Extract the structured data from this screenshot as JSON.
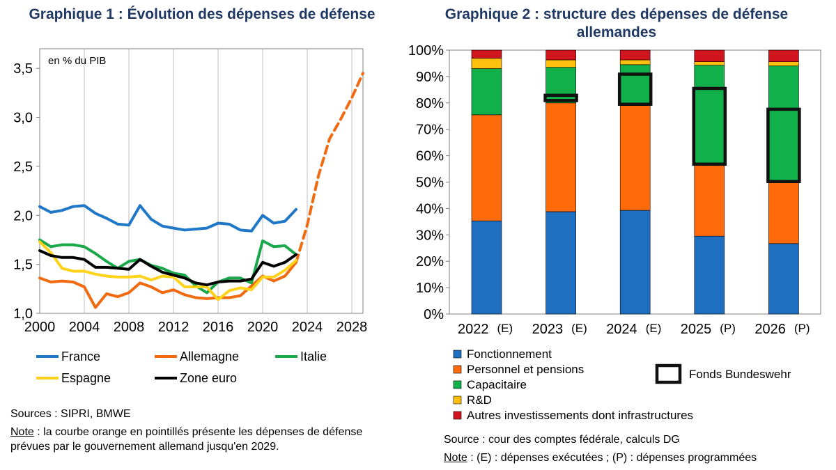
{
  "chart_data": [
    {
      "type": "line",
      "title": "Graphique 1 : Évolution des dépenses de défense",
      "unit_label": "en % du PIB",
      "xlim": [
        2000,
        2029
      ],
      "ylim": [
        1.0,
        3.7
      ],
      "x_ticks": [
        "2000",
        "2004",
        "2008",
        "2012",
        "2016",
        "2020",
        "2024",
        "2028"
      ],
      "y_ticks": [
        "1,0",
        "1,5",
        "2,0",
        "2,5",
        "3,0",
        "3,5"
      ],
      "series": [
        {
          "name": "France",
          "color": "#1f77c8",
          "style": "solid",
          "x": [
            2000,
            2001,
            2002,
            2003,
            2004,
            2005,
            2006,
            2007,
            2008,
            2009,
            2010,
            2011,
            2012,
            2013,
            2014,
            2015,
            2016,
            2017,
            2018,
            2019,
            2020,
            2021,
            2022,
            2023
          ],
          "y": [
            2.09,
            2.03,
            2.05,
            2.09,
            2.1,
            2.02,
            1.97,
            1.91,
            1.9,
            2.1,
            1.96,
            1.89,
            1.87,
            1.85,
            1.86,
            1.87,
            1.92,
            1.91,
            1.85,
            1.84,
            2.0,
            1.92,
            1.94,
            2.06
          ]
        },
        {
          "name": "Allemagne",
          "color": "#f26a10",
          "style": "solid",
          "x": [
            2000,
            2001,
            2002,
            2003,
            2004,
            2005,
            2006,
            2007,
            2008,
            2009,
            2010,
            2011,
            2012,
            2013,
            2014,
            2015,
            2016,
            2017,
            2018,
            2019,
            2020,
            2021,
            2022,
            2023
          ],
          "y": [
            1.36,
            1.32,
            1.33,
            1.32,
            1.27,
            1.06,
            1.2,
            1.17,
            1.21,
            1.31,
            1.27,
            1.21,
            1.24,
            1.19,
            1.16,
            1.15,
            1.16,
            1.16,
            1.18,
            1.28,
            1.38,
            1.33,
            1.38,
            1.52
          ]
        },
        {
          "name": "Allemagne (prévisions)",
          "color": "#f26a10",
          "style": "dashed",
          "x": [
            2023,
            2024,
            2025,
            2026,
            2027,
            2028,
            2029
          ],
          "y": [
            1.52,
            1.9,
            2.4,
            2.78,
            2.98,
            3.2,
            3.45
          ]
        },
        {
          "name": "Italie",
          "color": "#19a84a",
          "style": "solid",
          "x": [
            2000,
            2001,
            2002,
            2003,
            2004,
            2005,
            2006,
            2007,
            2008,
            2009,
            2010,
            2011,
            2012,
            2013,
            2014,
            2015,
            2016,
            2017,
            2018,
            2019,
            2020,
            2021,
            2022,
            2023
          ],
          "y": [
            1.75,
            1.68,
            1.7,
            1.7,
            1.68,
            1.61,
            1.53,
            1.46,
            1.53,
            1.55,
            1.49,
            1.46,
            1.41,
            1.39,
            1.28,
            1.21,
            1.32,
            1.36,
            1.36,
            1.31,
            1.74,
            1.68,
            1.69,
            1.6
          ]
        },
        {
          "name": "Espagne",
          "color": "#ffd21a",
          "style": "solid",
          "x": [
            2000,
            2001,
            2002,
            2003,
            2004,
            2005,
            2006,
            2007,
            2008,
            2009,
            2010,
            2011,
            2012,
            2013,
            2014,
            2015,
            2016,
            2017,
            2018,
            2019,
            2020,
            2021,
            2022,
            2023
          ],
          "y": [
            1.73,
            1.62,
            1.46,
            1.43,
            1.43,
            1.4,
            1.38,
            1.37,
            1.37,
            1.38,
            1.34,
            1.38,
            1.37,
            1.27,
            1.27,
            1.27,
            1.14,
            1.23,
            1.26,
            1.24,
            1.37,
            1.37,
            1.44,
            1.54
          ]
        },
        {
          "name": "Zone euro",
          "color": "#000000",
          "style": "solid",
          "x": [
            2000,
            2001,
            2002,
            2003,
            2004,
            2005,
            2006,
            2007,
            2008,
            2009,
            2010,
            2011,
            2012,
            2013,
            2014,
            2015,
            2016,
            2017,
            2018,
            2019,
            2020,
            2021,
            2022,
            2023
          ],
          "y": [
            1.64,
            1.59,
            1.57,
            1.57,
            1.55,
            1.47,
            1.47,
            1.46,
            1.45,
            1.55,
            1.48,
            1.42,
            1.39,
            1.36,
            1.31,
            1.29,
            1.32,
            1.33,
            1.33,
            1.35,
            1.52,
            1.48,
            1.52,
            1.6
          ]
        }
      ],
      "legend": [
        "France",
        "Allemagne",
        "Italie",
        "Espagne",
        "Zone euro"
      ]
    },
    {
      "type": "bar",
      "stacked": true,
      "title": "Graphique 2 : structure des dépenses de défense allemandes",
      "ylim": [
        0,
        100
      ],
      "y_ticks": [
        "0%",
        "10%",
        "20%",
        "30%",
        "40%",
        "50%",
        "60%",
        "70%",
        "80%",
        "90%",
        "100%"
      ],
      "categories": [
        "2022",
        "2023",
        "2024",
        "2025",
        "2026"
      ],
      "category_marks": [
        "(E)",
        "(E)",
        "(E)",
        "(P)",
        "(P)"
      ],
      "series": [
        {
          "name": "Fonctionnement",
          "color": "#1f6fc0",
          "values": [
            35.3,
            38.8,
            39.3,
            29.5,
            26.7
          ]
        },
        {
          "name": "Personnel et pensions",
          "color": "#ff6a0a",
          "values": [
            40.2,
            41.2,
            39.7,
            26.8,
            23.0
          ]
        },
        {
          "name": "Capacitaire",
          "color": "#10b04a",
          "values": [
            17.5,
            13.5,
            15.5,
            38.0,
            44.3
          ]
        },
        {
          "name": "R&D",
          "color": "#ffc10e",
          "values": [
            3.9,
            2.8,
            1.8,
            1.3,
            1.6
          ]
        },
        {
          "name": "Autres investissements dont infrastructures",
          "color": "#d0151e",
          "values": [
            3.1,
            3.7,
            3.7,
            4.4,
            4.4
          ]
        }
      ],
      "fonds_bundeswehr": {
        "label": "Fonds Bundeswehr",
        "ranges": [
          null,
          [
            80.9,
            82.9
          ],
          [
            79.5,
            90.9
          ],
          [
            56.8,
            85.5
          ],
          [
            50.2,
            77.6
          ]
        ]
      }
    }
  ],
  "notes": {
    "left_sources": "Sources : SIPRI, BMWE",
    "left_note_label": "Note",
    "left_note_text": " : la courbe orange en pointillés présente les dépenses de défense prévues par le gouvernement allemand jusqu'en 2029.",
    "right_source": "Source : cour des comptes fédérale, calculs DG",
    "right_note_label": "Note",
    "right_note_text": " : (E) : dépenses exécutées ; (P) : dépenses programmées"
  }
}
